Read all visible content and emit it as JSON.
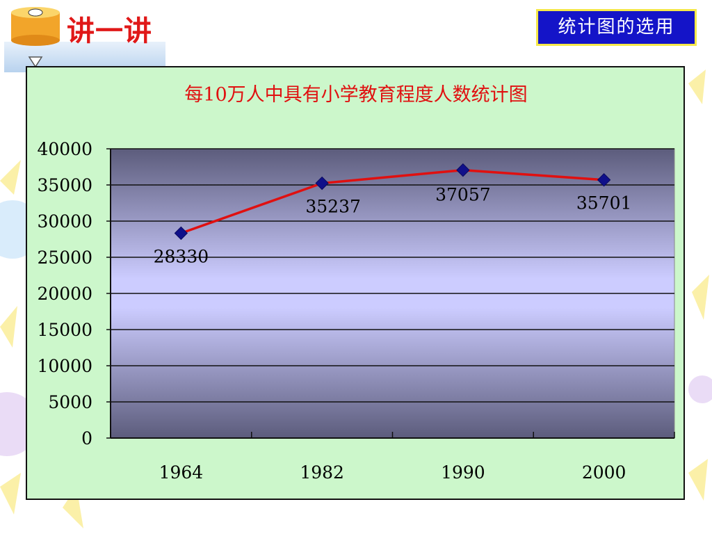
{
  "header": {
    "title": "讲一讲"
  },
  "topic_badge": "统计图的选用",
  "chart_data": {
    "type": "line",
    "title": "每10万人中具有小学教育程度人数统计图",
    "categories": [
      "1964",
      "1982",
      "1990",
      "2000"
    ],
    "values": [
      28330,
      35237,
      37057,
      35701
    ],
    "data_labels": [
      "28330",
      "35237",
      "37057",
      "35701"
    ],
    "ylim": [
      0,
      40000
    ],
    "yticks": [
      0,
      5000,
      10000,
      15000,
      20000,
      25000,
      30000,
      35000,
      40000
    ],
    "ytick_labels": [
      "0",
      "5000",
      "10000",
      "15000",
      "20000",
      "25000",
      "30000",
      "35000",
      "40000"
    ],
    "grid": true,
    "legend": "none",
    "colors": {
      "line": "#e01010",
      "marker": "#10108a",
      "title": "#e01010",
      "panel": "#ccf7cb"
    }
  }
}
